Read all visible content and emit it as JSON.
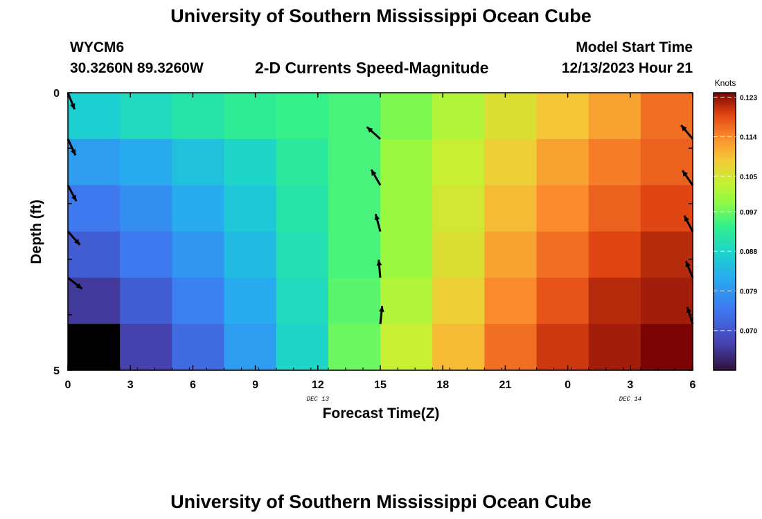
{
  "header": {
    "title": "University of Southern Mississippi Ocean Cube",
    "station": "WYCM6",
    "coordinates": "30.3260N  89.3260W",
    "subtitle": "2-D Currents Speed-Magnitude",
    "model_start_label": "Model Start Time",
    "model_start_value": "12/13/2023 Hour 21"
  },
  "footer": {
    "title": "University of Southern Mississippi Ocean Cube"
  },
  "chart_data": {
    "type": "heatmap",
    "title": "2-D Currents Speed-Magnitude",
    "xlabel": "Forecast Time(Z)",
    "ylabel": "Depth (ft)",
    "colorbar_label": "Knots",
    "x_tick_labels": [
      "0",
      "3",
      "6",
      "9",
      "12",
      "15",
      "18",
      "21",
      "0",
      "3",
      "6"
    ],
    "x_date_labels": [
      {
        "label": "DEC 13",
        "at_tick": 4
      },
      {
        "label": "DEC 14",
        "at_tick": 9
      }
    ],
    "y_tick_labels": [
      "0",
      "5"
    ],
    "ylim": [
      0,
      5
    ],
    "colorbar_ticks": [
      "0.123",
      "0.114",
      "0.105",
      "0.097",
      "0.088",
      "0.079",
      "0.070"
    ],
    "colorbar_range": [
      0.061,
      0.124
    ],
    "columns": 12,
    "rows": 6,
    "cells": [
      [
        0.087,
        0.089,
        0.091,
        0.093,
        0.094,
        0.095,
        0.098,
        0.102,
        0.106,
        0.109,
        0.112,
        0.116
      ],
      [
        0.08,
        0.082,
        0.085,
        0.088,
        0.092,
        0.095,
        0.1,
        0.104,
        0.108,
        0.112,
        0.115,
        0.117
      ],
      [
        0.075,
        0.078,
        0.082,
        0.086,
        0.091,
        0.095,
        0.1,
        0.105,
        0.11,
        0.114,
        0.117,
        0.119
      ],
      [
        0.071,
        0.075,
        0.079,
        0.084,
        0.09,
        0.095,
        0.1,
        0.106,
        0.112,
        0.116,
        0.119,
        0.121
      ],
      [
        0.066,
        0.071,
        0.076,
        0.082,
        0.089,
        0.096,
        0.102,
        0.108,
        0.114,
        0.118,
        0.121,
        0.122
      ],
      [
        0.06,
        0.067,
        0.073,
        0.08,
        0.088,
        0.097,
        0.104,
        0.11,
        0.116,
        0.12,
        0.122,
        0.124
      ]
    ],
    "vectors": [
      {
        "col": 0,
        "row": 0,
        "angle": -68
      },
      {
        "col": 0,
        "row": 1,
        "angle": -65
      },
      {
        "col": 0,
        "row": 2,
        "angle": -62
      },
      {
        "col": 0,
        "row": 3,
        "angle": -48
      },
      {
        "col": 0,
        "row": 4,
        "angle": -38
      },
      {
        "col": 6,
        "row": 1,
        "angle": 138
      },
      {
        "col": 6,
        "row": 2,
        "angle": 120
      },
      {
        "col": 6,
        "row": 3,
        "angle": 105
      },
      {
        "col": 6,
        "row": 4,
        "angle": 95
      },
      {
        "col": 6,
        "row": 5,
        "angle": 84
      },
      {
        "col": 12,
        "row": 1,
        "angle": 130
      },
      {
        "col": 12,
        "row": 2,
        "angle": 125
      },
      {
        "col": 12,
        "row": 3,
        "angle": 118
      },
      {
        "col": 12,
        "row": 4,
        "angle": 112
      },
      {
        "col": 12,
        "row": 5,
        "angle": 108
      }
    ]
  }
}
